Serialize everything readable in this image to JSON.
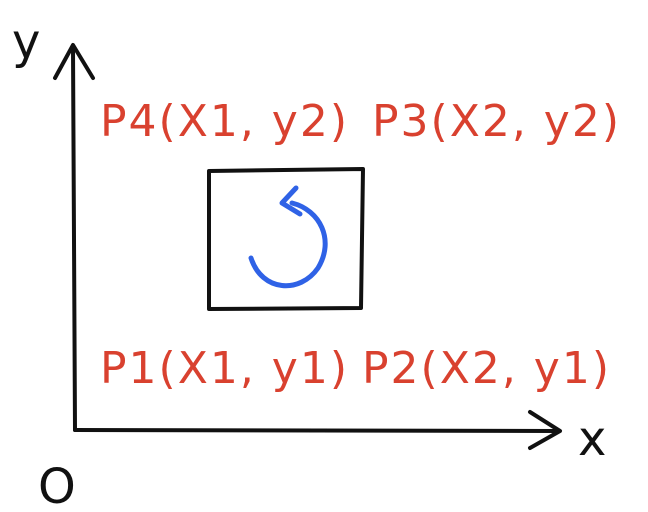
{
  "axes": {
    "x_label": "x",
    "y_label": "y",
    "origin_label": "O",
    "axis_color": "#111111"
  },
  "points": {
    "p1": "P1(X1, y1)",
    "p2": "P2(X2, y1)",
    "p3": "P3(X2, y2)",
    "p4": "P4(X1, y2)",
    "color": "#d9412f"
  },
  "square": {
    "stroke_color": "#111111"
  },
  "rotation_arrow": {
    "direction": "counterclockwise",
    "color": "#2f62e6"
  }
}
